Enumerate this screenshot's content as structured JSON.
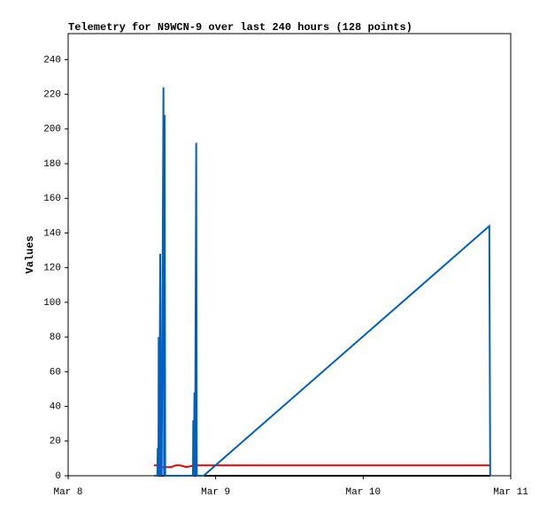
{
  "chart_data": {
    "type": "line",
    "title": "Telemetry for N9WCN-9 over last 240 hours (128 points)",
    "y_label": "Values",
    "xlim": [
      0,
      3
    ],
    "xticks": [
      {
        "value": 0,
        "label": "Mar 8"
      },
      {
        "value": 1,
        "label": "Mar 9"
      },
      {
        "value": 2,
        "label": "Mar 10"
      },
      {
        "value": 3,
        "label": "Mar 11"
      }
    ],
    "ylim": [
      0,
      255
    ],
    "yticks": [
      0,
      20,
      40,
      60,
      80,
      100,
      120,
      140,
      160,
      180,
      200,
      220,
      240
    ],
    "series": [
      {
        "color": "#000000",
        "x": [
          0.582,
          2.861
        ],
        "values": [
          0,
          0
        ]
      },
      {
        "color": "#ee0000",
        "x": [
          0.582,
          0.6,
          0.62,
          0.7,
          0.73,
          0.76,
          0.8,
          0.86,
          2.861
        ],
        "values": [
          6,
          6,
          5,
          5,
          6,
          6,
          5,
          6,
          6
        ]
      },
      {
        "color": "#0060c0",
        "x": [
          0.582,
          0.605,
          0.607,
          0.612,
          0.614,
          0.618,
          0.624,
          0.628,
          0.63,
          0.634,
          0.646,
          0.65,
          0.654,
          0.658,
          0.846,
          0.848,
          0.852,
          0.856,
          0.86,
          0.868,
          0.872,
          0.918,
          2.855,
          2.861
        ],
        "values": [
          0,
          0,
          16,
          0,
          80,
          0,
          128,
          0,
          64,
          0,
          224,
          0,
          208,
          0,
          0,
          32,
          0,
          48,
          0,
          192,
          0,
          0,
          144,
          0
        ]
      }
    ]
  }
}
